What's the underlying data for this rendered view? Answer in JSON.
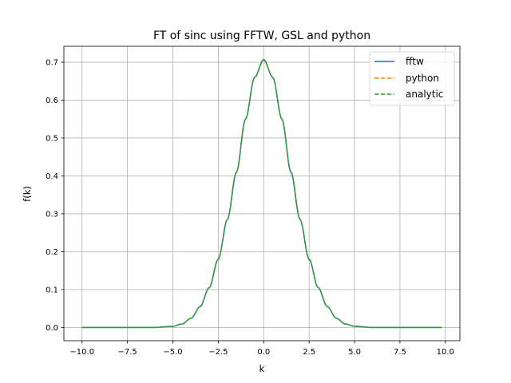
{
  "chart_data": {
    "type": "line",
    "title": "FT of sinc using FFTW, GSL and python",
    "xlabel": "k",
    "ylabel": "f(k)",
    "xlim": [
      -11.0,
      10.8
    ],
    "ylim": [
      -0.035,
      0.742
    ],
    "xticks": [
      -10.0,
      -7.5,
      -5.0,
      -2.5,
      0.0,
      2.5,
      5.0,
      7.5,
      10.0
    ],
    "xtick_labels": [
      "−10.0",
      "−7.5",
      "−5.0",
      "−2.5",
      "0.0",
      "2.5",
      "5.0",
      "7.5",
      "10.0"
    ],
    "yticks": [
      0.0,
      0.1,
      0.2,
      0.3,
      0.4,
      0.5,
      0.6,
      0.7
    ],
    "ytick_labels": [
      "0.0",
      "0.1",
      "0.2",
      "0.3",
      "0.4",
      "0.5",
      "0.6",
      "0.7"
    ],
    "grid": true,
    "legend_position": "top-right",
    "x_range": [
      -10.0,
      9.8
    ],
    "series": [
      {
        "name": "fftw",
        "color": "#1f77b4",
        "style": "solid",
        "x": [
          -10.0,
          -8.0,
          -6.0,
          -5.0,
          -4.5,
          -4.0,
          -3.5,
          -3.0,
          -2.5,
          -2.0,
          -1.5,
          -1.0,
          -0.5,
          0.0,
          0.5,
          1.0,
          1.5,
          2.0,
          2.5,
          3.0,
          3.5,
          4.0,
          4.5,
          5.0,
          6.0,
          8.0,
          9.8
        ],
        "y": [
          0.0,
          0.0,
          0.0,
          0.003,
          0.009,
          0.024,
          0.055,
          0.105,
          0.18,
          0.285,
          0.41,
          0.55,
          0.66,
          0.707,
          0.66,
          0.55,
          0.41,
          0.285,
          0.18,
          0.105,
          0.055,
          0.024,
          0.009,
          0.003,
          0.0,
          0.0,
          0.0
        ]
      },
      {
        "name": "python",
        "color": "#ff7f0e",
        "style": "dashed",
        "x": [
          -10.0,
          -8.0,
          -6.0,
          -5.0,
          -4.5,
          -4.0,
          -3.5,
          -3.0,
          -2.5,
          -2.0,
          -1.5,
          -1.0,
          -0.5,
          0.0,
          0.5,
          1.0,
          1.5,
          2.0,
          2.5,
          3.0,
          3.5,
          4.0,
          4.5,
          5.0,
          6.0,
          8.0,
          9.8
        ],
        "y": [
          0.0,
          0.0,
          0.0,
          0.003,
          0.009,
          0.024,
          0.055,
          0.105,
          0.18,
          0.285,
          0.41,
          0.55,
          0.66,
          0.707,
          0.66,
          0.55,
          0.41,
          0.285,
          0.18,
          0.105,
          0.055,
          0.024,
          0.009,
          0.003,
          0.0,
          0.0,
          0.0
        ]
      },
      {
        "name": "analytic",
        "color": "#2ca02c",
        "style": "dashed",
        "x": [
          -10.0,
          -8.0,
          -6.0,
          -5.0,
          -4.5,
          -4.0,
          -3.5,
          -3.0,
          -2.5,
          -2.0,
          -1.5,
          -1.0,
          -0.5,
          0.0,
          0.5,
          1.0,
          1.5,
          2.0,
          2.5,
          3.0,
          3.5,
          4.0,
          4.5,
          5.0,
          6.0,
          8.0,
          9.8
        ],
        "y": [
          0.0,
          0.0,
          0.0,
          0.003,
          0.009,
          0.024,
          0.055,
          0.105,
          0.18,
          0.285,
          0.41,
          0.55,
          0.66,
          0.707,
          0.66,
          0.55,
          0.41,
          0.285,
          0.18,
          0.105,
          0.055,
          0.024,
          0.009,
          0.003,
          0.0,
          0.0,
          0.0
        ]
      }
    ]
  }
}
